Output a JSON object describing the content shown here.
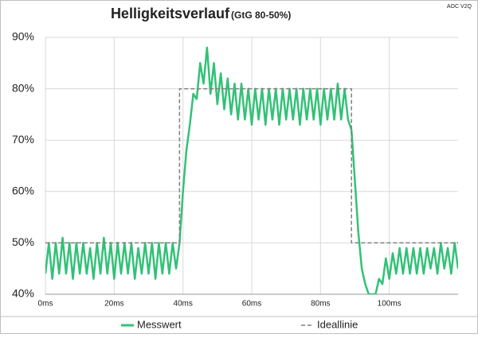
{
  "chart_data": {
    "type": "line",
    "title": "Helligkeitsverlauf",
    "subtitle": "(GtG 80-50%)",
    "annotation": "AOC V2Q",
    "xlim": [
      0,
      120
    ],
    "ylim": [
      40,
      90
    ],
    "xticks": [
      {
        "value": 0,
        "label": "0ms"
      },
      {
        "value": 20,
        "label": "20ms"
      },
      {
        "value": 40,
        "label": "40ms"
      },
      {
        "value": 60,
        "label": "60ms"
      },
      {
        "value": 80,
        "label": "80ms"
      },
      {
        "value": 100,
        "label": "100ms"
      }
    ],
    "yticks": [
      {
        "value": 40,
        "label": "40%"
      },
      {
        "value": 50,
        "label": "50%"
      },
      {
        "value": 60,
        "label": "60%"
      },
      {
        "value": 70,
        "label": "70%"
      },
      {
        "value": 80,
        "label": "80%"
      },
      {
        "value": 90,
        "label": "90%"
      }
    ],
    "grid": true,
    "legend": "bottom",
    "series": [
      {
        "name": "Messwert",
        "color": "#33c177",
        "dashed": false,
        "x": [
          0,
          1,
          2,
          3,
          4,
          5,
          6,
          7,
          8,
          9,
          10,
          11,
          12,
          13,
          14,
          15,
          16,
          17,
          18,
          19,
          20,
          21,
          22,
          23,
          24,
          25,
          26,
          27,
          28,
          29,
          30,
          31,
          32,
          33,
          34,
          35,
          36,
          37,
          38,
          39,
          40,
          41,
          42,
          43,
          44,
          45,
          46,
          47,
          48,
          49,
          50,
          51,
          52,
          53,
          54,
          55,
          56,
          57,
          58,
          59,
          60,
          61,
          62,
          63,
          64,
          65,
          66,
          67,
          68,
          69,
          70,
          71,
          72,
          73,
          74,
          75,
          76,
          77,
          78,
          79,
          80,
          81,
          82,
          83,
          84,
          85,
          86,
          87,
          88,
          89,
          90,
          91,
          92,
          93,
          94,
          95,
          96,
          97,
          98,
          99,
          100,
          101,
          102,
          103,
          104,
          105,
          106,
          107,
          108,
          109,
          110,
          111,
          112,
          113,
          114,
          115,
          116,
          117,
          118,
          119,
          120
        ],
        "values": [
          44,
          50,
          43,
          50,
          44,
          51,
          44,
          50,
          43,
          50,
          44,
          50,
          44,
          49,
          43,
          50,
          44,
          51,
          44,
          50,
          43,
          50,
          44,
          50,
          44,
          50,
          43,
          49,
          44,
          50,
          44,
          50,
          43,
          50,
          44,
          50,
          44,
          50,
          45,
          50,
          60,
          68,
          73,
          79,
          78,
          85,
          81,
          88,
          79,
          85,
          77,
          83,
          76,
          82,
          75,
          81,
          74,
          81,
          74,
          80,
          73,
          80,
          74,
          80,
          73,
          80,
          74,
          80,
          73,
          80,
          74,
          80,
          74,
          80,
          73,
          80,
          74,
          80,
          74,
          80,
          73,
          80,
          74,
          80,
          74,
          81,
          74,
          80,
          74,
          72,
          62,
          52,
          45,
          42,
          40,
          40,
          40,
          43,
          42,
          47,
          43,
          48,
          44,
          49,
          44,
          49,
          44,
          49,
          44,
          49,
          44,
          49,
          45,
          49,
          44,
          50,
          45,
          49,
          44,
          50,
          45
        ]
      },
      {
        "name": "Ideallinie",
        "color": "#7f7f7f",
        "dashed": true,
        "x": [
          0,
          39,
          39,
          89,
          89,
          120
        ],
        "values": [
          50,
          50,
          80,
          80,
          50,
          50
        ]
      }
    ]
  }
}
